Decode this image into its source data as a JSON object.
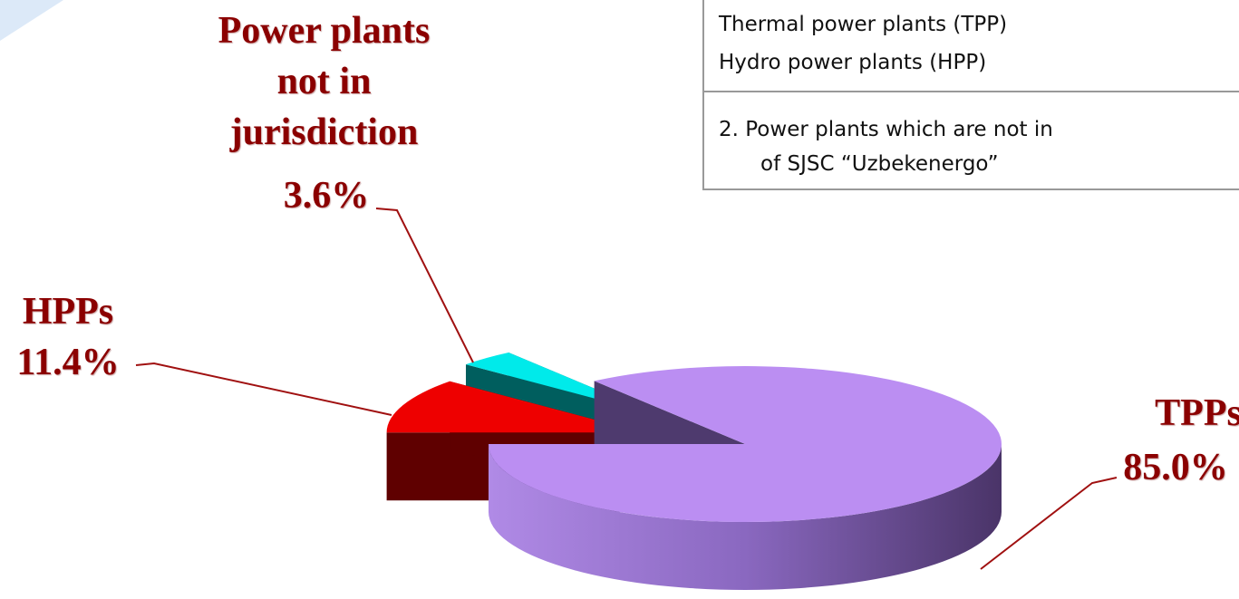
{
  "chart_data": {
    "type": "pie",
    "categories": [
      "TPPs",
      "HPPs",
      "Power plants not in jurisdiction"
    ],
    "values": [
      85.0,
      11.4,
      3.6
    ],
    "value_labels": [
      "85.0%",
      "11.4%",
      "3.6%"
    ],
    "colors": [
      "#bb8ef2",
      "#ee0000",
      "#00eaea"
    ]
  },
  "table": {
    "rows": [
      "Thermal power plants (TPP)",
      "Hydro power plants (HPP)",
      "2. Power plants which are not in",
      "of SJSC “Uzbekenergo”"
    ]
  }
}
